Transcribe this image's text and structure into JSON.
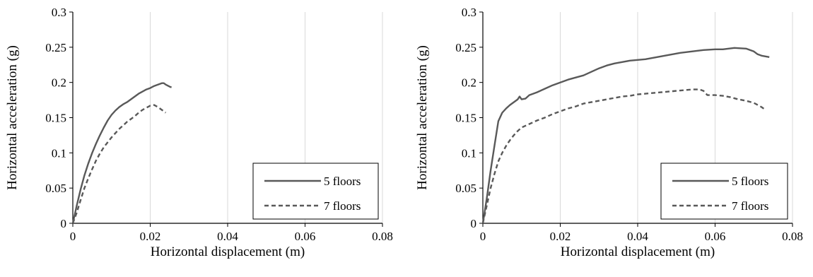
{
  "chart_data": [
    {
      "type": "line",
      "title": "",
      "xlabel": "Horizontal displacement (m)",
      "ylabel": "Horizontal acceleration (g)",
      "xlim": [
        0,
        0.08
      ],
      "ylim": [
        0,
        0.3
      ],
      "xticks": [
        0,
        0.02,
        0.04,
        0.06,
        0.08
      ],
      "xtick_labels": [
        "0",
        "0.02",
        "0.04",
        "0.06",
        "0.08"
      ],
      "yticks": [
        0,
        0.05,
        0.1,
        0.15,
        0.2,
        0.25,
        0.3
      ],
      "ytick_labels": [
        "0",
        "0.05",
        "0.1",
        "0.15",
        "0.2",
        "0.25",
        "0.3"
      ],
      "grid": "vertical",
      "legend": "bottom-right",
      "series": [
        {
          "name": "5 floors",
          "color": "#595959",
          "style": "solid",
          "x": [
            0,
            0.001,
            0.002,
            0.003,
            0.004,
            0.005,
            0.006,
            0.007,
            0.008,
            0.009,
            0.01,
            0.011,
            0.012,
            0.013,
            0.014,
            0.015,
            0.016,
            0.017,
            0.018,
            0.019,
            0.02,
            0.021,
            0.022,
            0.023,
            0.0235,
            0.024,
            0.025,
            0.0255
          ],
          "y": [
            0,
            0.025,
            0.048,
            0.068,
            0.085,
            0.1,
            0.113,
            0.125,
            0.136,
            0.146,
            0.154,
            0.16,
            0.165,
            0.169,
            0.172,
            0.176,
            0.18,
            0.184,
            0.187,
            0.19,
            0.192,
            0.195,
            0.197,
            0.199,
            0.199,
            0.197,
            0.194,
            0.193
          ]
        },
        {
          "name": "7 floors",
          "color": "#595959",
          "style": "dashed",
          "x": [
            0,
            0.001,
            0.002,
            0.003,
            0.004,
            0.005,
            0.006,
            0.007,
            0.008,
            0.009,
            0.01,
            0.011,
            0.012,
            0.013,
            0.014,
            0.015,
            0.016,
            0.017,
            0.018,
            0.019,
            0.02,
            0.021,
            0.022,
            0.023,
            0.024
          ],
          "y": [
            0,
            0.015,
            0.033,
            0.05,
            0.064,
            0.077,
            0.089,
            0.099,
            0.108,
            0.115,
            0.122,
            0.128,
            0.134,
            0.139,
            0.144,
            0.148,
            0.152,
            0.157,
            0.161,
            0.164,
            0.167,
            0.168,
            0.165,
            0.161,
            0.157
          ]
        }
      ]
    },
    {
      "type": "line",
      "title": "",
      "xlabel": "Horizontal displacement (m)",
      "ylabel": "Horizontal acceleration (g)",
      "xlim": [
        0,
        0.08
      ],
      "ylim": [
        0,
        0.3
      ],
      "xticks": [
        0,
        0.02,
        0.04,
        0.06,
        0.08
      ],
      "xtick_labels": [
        "0",
        "0.02",
        "0.04",
        "0.06",
        "0.08"
      ],
      "yticks": [
        0,
        0.05,
        0.1,
        0.15,
        0.2,
        0.25,
        0.3
      ],
      "ytick_labels": [
        "0",
        "0.05",
        "0.1",
        "0.15",
        "0.2",
        "0.25",
        "0.3"
      ],
      "grid": "vertical",
      "legend": "bottom-right",
      "series": [
        {
          "name": "5 floors",
          "color": "#595959",
          "style": "solid",
          "x": [
            0,
            0.001,
            0.002,
            0.003,
            0.004,
            0.005,
            0.006,
            0.007,
            0.008,
            0.009,
            0.0095,
            0.01,
            0.011,
            0.012,
            0.013,
            0.014,
            0.016,
            0.018,
            0.02,
            0.022,
            0.024,
            0.026,
            0.028,
            0.03,
            0.032,
            0.034,
            0.036,
            0.038,
            0.04,
            0.042,
            0.045,
            0.048,
            0.051,
            0.054,
            0.057,
            0.06,
            0.062,
            0.065,
            0.068,
            0.07,
            0.071,
            0.072,
            0.074
          ],
          "y": [
            0,
            0.035,
            0.075,
            0.11,
            0.145,
            0.157,
            0.163,
            0.168,
            0.172,
            0.176,
            0.18,
            0.176,
            0.177,
            0.182,
            0.184,
            0.186,
            0.191,
            0.196,
            0.2,
            0.204,
            0.207,
            0.21,
            0.215,
            0.22,
            0.224,
            0.227,
            0.229,
            0.231,
            0.232,
            0.233,
            0.236,
            0.239,
            0.242,
            0.244,
            0.246,
            0.247,
            0.247,
            0.249,
            0.248,
            0.244,
            0.24,
            0.238,
            0.236
          ]
        },
        {
          "name": "7 floors",
          "color": "#595959",
          "style": "dashed",
          "x": [
            0,
            0.001,
            0.002,
            0.003,
            0.004,
            0.005,
            0.006,
            0.007,
            0.008,
            0.009,
            0.01,
            0.012,
            0.014,
            0.016,
            0.018,
            0.02,
            0.022,
            0.024,
            0.026,
            0.028,
            0.03,
            0.032,
            0.034,
            0.036,
            0.038,
            0.04,
            0.042,
            0.044,
            0.046,
            0.048,
            0.05,
            0.052,
            0.054,
            0.056,
            0.057,
            0.058,
            0.06,
            0.062,
            0.064,
            0.066,
            0.068,
            0.07,
            0.072,
            0.073
          ],
          "y": [
            0,
            0.025,
            0.05,
            0.07,
            0.088,
            0.1,
            0.11,
            0.118,
            0.125,
            0.131,
            0.136,
            0.141,
            0.146,
            0.15,
            0.155,
            0.159,
            0.163,
            0.166,
            0.17,
            0.172,
            0.174,
            0.176,
            0.178,
            0.18,
            0.181,
            0.183,
            0.184,
            0.185,
            0.186,
            0.187,
            0.188,
            0.189,
            0.19,
            0.19,
            0.188,
            0.182,
            0.182,
            0.181,
            0.179,
            0.176,
            0.174,
            0.171,
            0.165,
            0.161
          ]
        }
      ]
    }
  ]
}
